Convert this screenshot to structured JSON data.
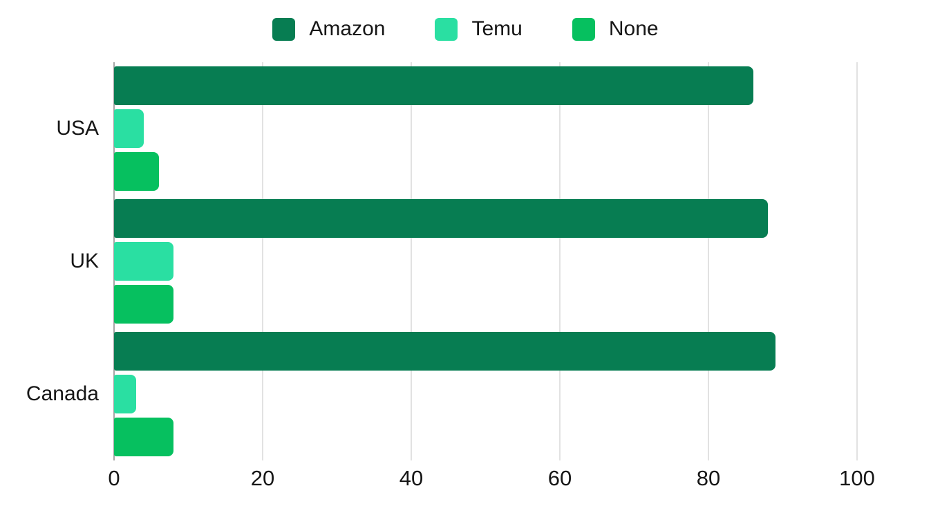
{
  "chart_data": {
    "type": "bar",
    "orientation": "horizontal",
    "title": "",
    "xlabel": "",
    "ylabel": "",
    "categories": [
      "USA",
      "UK",
      "Canada"
    ],
    "series": [
      {
        "name": "Amazon",
        "color": "#077d52",
        "values": [
          86,
          88,
          89
        ]
      },
      {
        "name": "Temu",
        "color": "#2adfa2",
        "values": [
          4,
          8,
          3
        ]
      },
      {
        "name": "None",
        "color": "#06c05f",
        "values": [
          6,
          8,
          8
        ]
      }
    ],
    "x_ticks": [
      "0",
      "20",
      "40",
      "60",
      "80",
      "100"
    ],
    "x_tick_values": [
      0,
      20,
      40,
      60,
      80,
      100
    ],
    "xlim": [
      0,
      100
    ],
    "grid": "vertical",
    "legend_position": "top",
    "colors": {
      "axis_line": "#a6a6a6",
      "grid_line": "#e2e2e2",
      "text": "#161616",
      "background": "#ffffff"
    }
  }
}
